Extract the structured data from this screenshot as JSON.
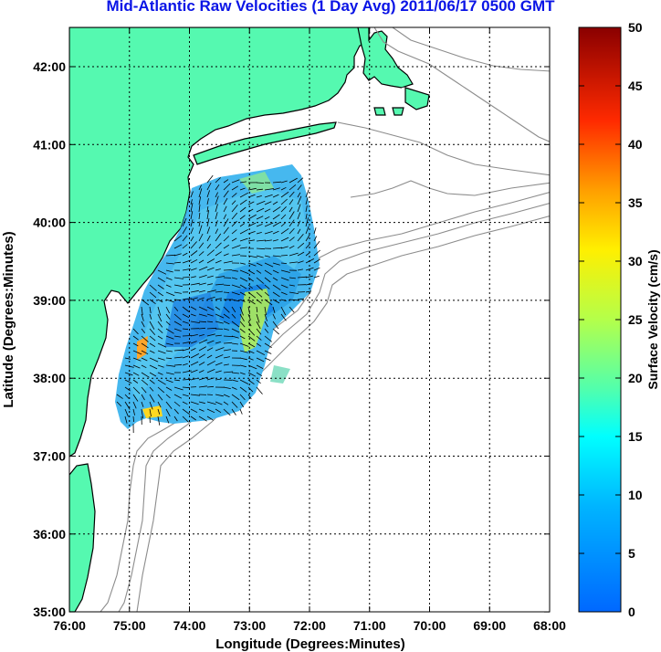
{
  "title": "Mid-Atlantic Raw Velocities (1 Day Avg) 2011/06/17 0500 GMT",
  "axes": {
    "x_label": "Longitude (Degrees:Minutes)",
    "y_label": "Latitude (Degrees:Minutes)",
    "x_ticks": [
      "76:00",
      "75:00",
      "74:00",
      "73:00",
      "72:00",
      "71:00",
      "70:00",
      "69:00",
      "68:00"
    ],
    "y_ticks": [
      "42:00",
      "41:00",
      "40:00",
      "39:00",
      "38:00",
      "37:00",
      "36:00",
      "35:00"
    ],
    "x_range": [
      -76,
      -68
    ],
    "y_range": [
      35,
      42.5
    ]
  },
  "colorbar": {
    "label": "Surface Velocity (cm/s)",
    "ticks": [
      "0",
      "5",
      "10",
      "15",
      "20",
      "25",
      "30",
      "35",
      "40",
      "45",
      "50"
    ],
    "range": [
      0,
      50
    ]
  },
  "colors": {
    "title": "#0a14e6",
    "land": "#55f9b0",
    "coast": "#000000",
    "bathymetry": "#8c8c8c"
  }
}
